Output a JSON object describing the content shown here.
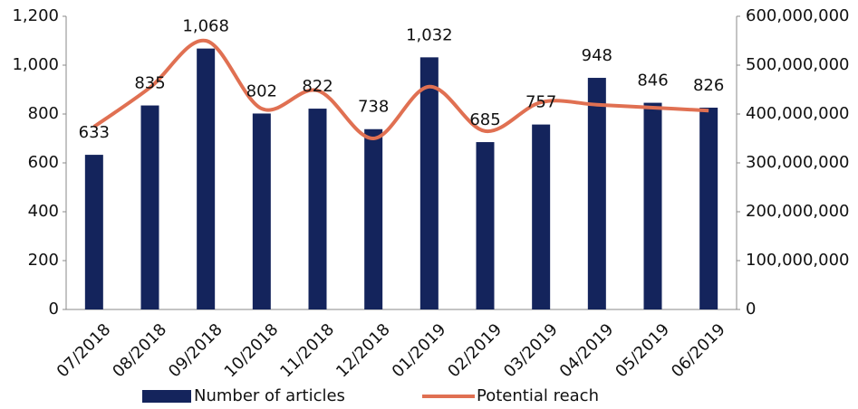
{
  "chart_data": {
    "type": "bar-line",
    "categories": [
      "07/2018",
      "08/2018",
      "09/2018",
      "10/2018",
      "11/2018",
      "12/2018",
      "01/2019",
      "02/2019",
      "03/2019",
      "04/2019",
      "05/2019",
      "06/2019"
    ],
    "series": [
      {
        "name": "Number of articles",
        "color": "#14245c",
        "values": [
          633,
          835,
          1068,
          802,
          822,
          738,
          1032,
          685,
          757,
          948,
          846,
          826
        ],
        "value_labels": [
          "633",
          "835",
          "1,068",
          "802",
          "822",
          "738",
          "1,032",
          "685",
          "757",
          "948",
          "846",
          "826"
        ]
      },
      {
        "name": "Potential reach",
        "color": "#e07052",
        "axis": "y2",
        "values": [
          374000000,
          454000000,
          550000000,
          411000000,
          448000000,
          350000000,
          456000000,
          365000000,
          424000000,
          419000000,
          413000000,
          407000000
        ]
      }
    ],
    "ylim": [
      0,
      1200
    ],
    "yticks": [
      0,
      200,
      400,
      600,
      800,
      {
        "value": 1000,
        "label": "1,000"
      },
      {
        "value": 1200,
        "label": "1,200"
      }
    ],
    "y2lim": [
      0,
      600000000
    ],
    "y2ticks": [
      0,
      {
        "value": 100000000,
        "label": "100,000,000"
      },
      {
        "value": 200000000,
        "label": "200,000,000"
      },
      {
        "value": 300000000,
        "label": "300,000,000"
      },
      {
        "value": 400000000,
        "label": "400,000,000"
      },
      {
        "value": 500000000,
        "label": "500,000,000"
      },
      {
        "value": 600000000,
        "label": "600,000,000"
      }
    ],
    "legend": "bottom"
  }
}
